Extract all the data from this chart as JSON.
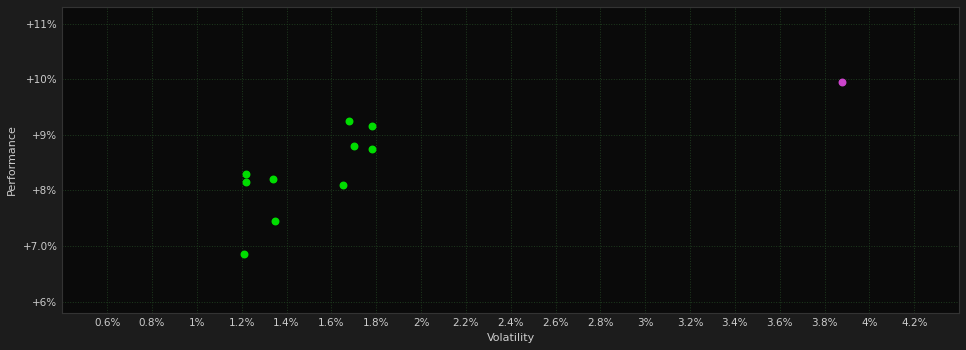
{
  "background_color": "#1c1c1c",
  "plot_bg_color": "#0a0a0a",
  "text_color": "#cccccc",
  "xlabel": "Volatility",
  "ylabel": "Performance",
  "xlim": [
    0.004,
    0.044
  ],
  "ylim": [
    0.058,
    0.113
  ],
  "xticks": [
    0.006,
    0.008,
    0.01,
    0.012,
    0.014,
    0.016,
    0.018,
    0.02,
    0.022,
    0.024,
    0.026,
    0.028,
    0.03,
    0.032,
    0.034,
    0.036,
    0.038,
    0.04,
    0.042
  ],
  "yticks": [
    0.06,
    0.07,
    0.08,
    0.09,
    0.1,
    0.11
  ],
  "green_points": [
    [
      0.0122,
      0.083
    ],
    [
      0.0122,
      0.0815
    ],
    [
      0.0134,
      0.082
    ],
    [
      0.0165,
      0.081
    ],
    [
      0.017,
      0.088
    ],
    [
      0.0178,
      0.0875
    ],
    [
      0.0135,
      0.0745
    ],
    [
      0.0121,
      0.0685
    ],
    [
      0.0168,
      0.0925
    ],
    [
      0.0178,
      0.0915
    ]
  ],
  "magenta_points": [
    [
      0.0388,
      0.0995
    ]
  ],
  "green_color": "#00dd00",
  "magenta_color": "#cc44cc",
  "point_size": 22,
  "grid_color": "#1e3a1e",
  "grid_linestyle": ":",
  "grid_linewidth": 0.7,
  "spine_color": "#333333",
  "tick_fontsize": 7.5,
  "label_fontsize": 8
}
